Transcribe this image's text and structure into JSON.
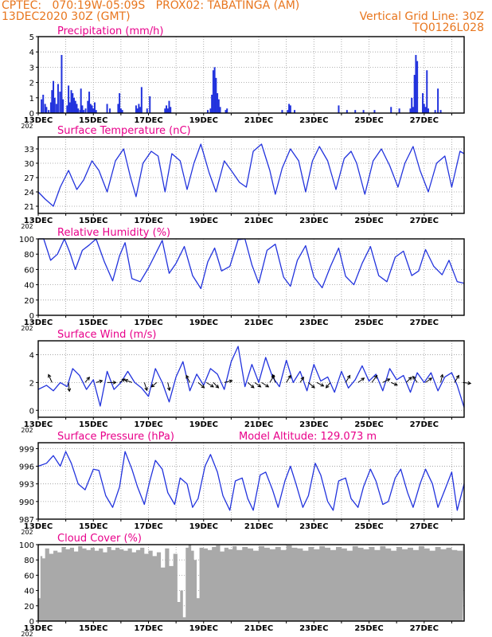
{
  "header": {
    "line1_left": "CPTEC:   070:19W-05:09S   PROX02: TABATINGA (AM)",
    "line2_left": "13DEC2020 30Z (GMT)",
    "line2_right": "Vertical Grid Line: 30Z",
    "line3_right": "TQ0126L028"
  },
  "colors": {
    "header_text": "#e8761e",
    "panel_title": "#e8008a",
    "line": "#2233dd",
    "cloud_fill": "#a9a9a9",
    "wind_arrow": "#000000"
  },
  "x_tick_labels": [
    "13DEC",
    "15DEC",
    "17DEC",
    "19DEC",
    "21DEC",
    "23DEC",
    "25DEC",
    "27DEC"
  ],
  "x_corner_label": "202",
  "chart_data": [
    {
      "id": "precip",
      "type": "bar",
      "title": "Precipitation (mm/h)",
      "yticks": [
        0,
        1,
        2,
        3,
        4,
        5
      ],
      "ylim": [
        0,
        5
      ],
      "grid": true,
      "x": [
        0.12,
        0.18,
        0.25,
        0.3,
        0.38,
        0.46,
        0.5,
        0.55,
        0.6,
        0.66,
        0.72,
        0.79,
        0.85,
        0.9,
        1.05,
        1.1,
        1.15,
        1.2,
        1.25,
        1.3,
        1.35,
        1.4,
        1.45,
        1.52,
        1.55,
        1.6,
        1.65,
        1.72,
        1.8,
        1.85,
        1.9,
        1.95,
        2.0,
        2.05,
        2.1,
        2.5,
        2.6,
        2.9,
        2.95,
        3.0,
        3.05,
        3.55,
        3.6,
        3.65,
        3.7,
        3.75,
        3.95,
        4.05,
        4.6,
        4.65,
        4.7,
        4.75,
        4.8,
        6.15,
        6.25,
        6.3,
        6.35,
        6.4,
        6.45,
        6.5,
        6.55,
        6.6,
        6.8,
        6.85,
        8.85,
        9.05,
        9.1,
        9.15,
        9.3,
        10.9,
        11.2,
        11.5,
        11.8,
        12.2,
        12.8,
        13.1,
        13.5,
        13.55,
        13.6,
        13.65,
        13.7,
        13.75,
        13.95,
        14.0,
        14.05,
        14.1,
        14.15,
        14.4,
        14.5,
        14.6
      ],
      "values": [
        0.9,
        1.2,
        0.6,
        0.4,
        0.2,
        0.7,
        1.5,
        2.1,
        1.0,
        0.6,
        1.9,
        1.4,
        3.8,
        0.9,
        0.5,
        1.8,
        0.7,
        1.5,
        1.3,
        1.0,
        0.8,
        0.6,
        0.3,
        0.2,
        1.6,
        0.5,
        0.2,
        0.3,
        0.8,
        1.4,
        0.6,
        0.5,
        0.3,
        0.7,
        0.2,
        0.6,
        0.3,
        0.6,
        1.3,
        0.3,
        0.2,
        0.5,
        0.3,
        0.6,
        0.4,
        1.7,
        0.3,
        1.1,
        0.3,
        0.5,
        0.3,
        0.8,
        0.4,
        0.2,
        0.3,
        1.2,
        2.8,
        3.0,
        2.3,
        1.3,
        0.9,
        0.4,
        0.2,
        0.3,
        0.2,
        0.2,
        0.6,
        0.5,
        0.2,
        0.5,
        0.2,
        0.2,
        0.2,
        0.2,
        0.4,
        0.3,
        0.3,
        1.0,
        0.4,
        2.5,
        3.8,
        3.4,
        1.3,
        0.6,
        0.4,
        2.8,
        0.3,
        0.2,
        1.6,
        0.2
      ]
    },
    {
      "id": "temp",
      "type": "line",
      "title": "Surface Temperature (nC)",
      "yticks": [
        21,
        24,
        27,
        30,
        33
      ],
      "ylim": [
        19.5,
        35.5
      ],
      "grid": true,
      "x": [
        0.0,
        0.25,
        0.55,
        0.8,
        1.1,
        1.4,
        1.65,
        1.95,
        2.2,
        2.5,
        2.8,
        3.1,
        3.35,
        3.55,
        3.8,
        4.1,
        4.35,
        4.6,
        4.85,
        5.15,
        5.4,
        5.65,
        5.9,
        6.2,
        6.45,
        6.75,
        7.0,
        7.3,
        7.55,
        7.8,
        8.1,
        8.4,
        8.6,
        8.85,
        9.15,
        9.45,
        9.7,
        9.95,
        10.2,
        10.5,
        10.8,
        11.1,
        11.35,
        11.55,
        11.85,
        12.15,
        12.45,
        12.75,
        13.05,
        13.3,
        13.6,
        13.85,
        14.15,
        14.45,
        14.75,
        15.0,
        15.3,
        15.45
      ],
      "values": [
        24.0,
        22.5,
        21.0,
        25.0,
        28.5,
        24.5,
        26.5,
        30.5,
        28.5,
        24.0,
        30.5,
        33.0,
        27.0,
        23.0,
        30.0,
        32.5,
        31.5,
        24.0,
        32.0,
        30.5,
        24.5,
        30.0,
        34.0,
        28.0,
        24.0,
        30.5,
        28.5,
        26.0,
        25.0,
        32.5,
        34.0,
        28.5,
        23.5,
        29.0,
        33.0,
        30.5,
        24.0,
        30.5,
        33.5,
        30.5,
        24.5,
        31.0,
        32.5,
        30.0,
        23.5,
        30.5,
        33.0,
        29.5,
        25.0,
        30.0,
        33.5,
        28.5,
        24.0,
        30.0,
        31.5,
        25.0,
        32.5,
        32.0
      ]
    },
    {
      "id": "rh",
      "type": "line",
      "title": "Relative Humidity (%)",
      "yticks": [
        0,
        20,
        40,
        60,
        80,
        100
      ],
      "ylim": [
        0,
        100
      ],
      "grid": true,
      "x": [
        0.0,
        0.2,
        0.45,
        0.7,
        0.95,
        1.15,
        1.35,
        1.6,
        1.85,
        2.1,
        2.4,
        2.7,
        2.95,
        3.15,
        3.4,
        3.7,
        4.0,
        4.25,
        4.5,
        4.75,
        5.0,
        5.3,
        5.6,
        5.9,
        6.15,
        6.4,
        6.65,
        6.95,
        7.25,
        7.5,
        7.75,
        8.0,
        8.3,
        8.6,
        8.9,
        9.15,
        9.4,
        9.7,
        10.0,
        10.3,
        10.6,
        10.9,
        11.15,
        11.45,
        11.75,
        12.05,
        12.35,
        12.65,
        12.95,
        13.25,
        13.55,
        13.8,
        14.05,
        14.35,
        14.65,
        14.9,
        15.2,
        15.45
      ],
      "values": [
        100,
        100,
        72,
        80,
        100,
        82,
        60,
        85,
        92,
        100,
        70,
        45,
        78,
        95,
        48,
        44,
        62,
        80,
        98,
        55,
        68,
        90,
        52,
        35,
        70,
        88,
        58,
        64,
        99,
        100,
        66,
        42,
        85,
        93,
        50,
        38,
        72,
        91,
        50,
        36,
        64,
        88,
        51,
        40,
        68,
        90,
        52,
        44,
        76,
        84,
        52,
        58,
        86,
        64,
        53,
        72,
        44,
        42
      ]
    },
    {
      "id": "wind",
      "type": "line",
      "title": "Surface Wind (m/s)",
      "yticks": [
        0,
        2,
        4
      ],
      "ylim": [
        -0.5,
        5.0
      ],
      "grid": true,
      "x": [
        0.0,
        0.3,
        0.55,
        0.8,
        1.05,
        1.25,
        1.5,
        1.75,
        2.0,
        2.25,
        2.5,
        2.75,
        3.0,
        3.25,
        3.5,
        3.75,
        4.0,
        4.25,
        4.5,
        4.75,
        5.0,
        5.25,
        5.5,
        5.75,
        6.0,
        6.25,
        6.5,
        6.75,
        7.0,
        7.25,
        7.5,
        7.75,
        8.0,
        8.25,
        8.5,
        8.75,
        9.0,
        9.25,
        9.5,
        9.75,
        10.0,
        10.25,
        10.5,
        10.75,
        11.0,
        11.25,
        11.5,
        11.75,
        12.0,
        12.25,
        12.5,
        12.75,
        13.0,
        13.25,
        13.5,
        13.75,
        14.0,
        14.25,
        14.5,
        14.75,
        15.0,
        15.2,
        15.45
      ],
      "values": [
        1.5,
        1.8,
        1.4,
        2.0,
        1.7,
        3.0,
        2.5,
        1.5,
        2.2,
        0.3,
        2.8,
        1.5,
        2.0,
        2.8,
        2.0,
        1.6,
        1.0,
        3.0,
        2.0,
        0.6,
        2.4,
        3.5,
        1.4,
        2.6,
        1.8,
        3.0,
        2.6,
        1.5,
        3.5,
        4.6,
        1.7,
        3.3,
        2.0,
        3.8,
        2.4,
        1.7,
        3.6,
        2.0,
        2.8,
        1.4,
        3.3,
        2.1,
        2.4,
        1.3,
        2.8,
        1.6,
        2.2,
        3.2,
        2.1,
        2.6,
        1.4,
        3.0,
        2.2,
        2.5,
        1.3,
        2.7,
        2.0,
        2.7,
        1.4,
        2.4,
        2.7,
        1.8,
        0.2
      ],
      "arrows": [
        {
          "t": 0.5,
          "dx": -0.4,
          "dy": 0.9
        },
        {
          "t": 1.1,
          "dx": 0.1,
          "dy": -1.0
        },
        {
          "t": 1.7,
          "dx": 0.5,
          "dy": 0.6
        },
        {
          "t": 2.1,
          "dx": 0.7,
          "dy": 0.2
        },
        {
          "t": 2.5,
          "dx": 1.0,
          "dy": 0.0
        },
        {
          "t": 2.95,
          "dx": 0.6,
          "dy": 0.4
        },
        {
          "t": 3.4,
          "dx": -0.8,
          "dy": 0.3
        },
        {
          "t": 3.85,
          "dx": 0.3,
          "dy": -0.9
        },
        {
          "t": 4.3,
          "dx": -0.6,
          "dy": -0.5
        },
        {
          "t": 4.7,
          "dx": 0.2,
          "dy": -0.9
        },
        {
          "t": 5.5,
          "dx": -0.4,
          "dy": 0.8
        },
        {
          "t": 5.8,
          "dx": 0.7,
          "dy": -0.6
        },
        {
          "t": 6.1,
          "dx": 0.8,
          "dy": -0.5
        },
        {
          "t": 6.35,
          "dx": 0.6,
          "dy": -0.6
        },
        {
          "t": 6.75,
          "dx": 0.9,
          "dy": 0.2
        },
        {
          "t": 7.6,
          "dx": 0.7,
          "dy": -0.6
        },
        {
          "t": 7.85,
          "dx": 0.7,
          "dy": -0.5
        },
        {
          "t": 8.1,
          "dx": 0.8,
          "dy": -0.5
        },
        {
          "t": 8.4,
          "dx": 0.5,
          "dy": 0.8
        },
        {
          "t": 8.6,
          "dx": -0.3,
          "dy": 0.9
        },
        {
          "t": 9.0,
          "dx": 0.5,
          "dy": 0.8
        },
        {
          "t": 9.5,
          "dx": 0.4,
          "dy": 0.6
        },
        {
          "t": 9.8,
          "dx": 0.7,
          "dy": -0.6
        },
        {
          "t": 10.1,
          "dx": 0.8,
          "dy": -0.4
        },
        {
          "t": 10.6,
          "dx": -0.5,
          "dy": -0.6
        },
        {
          "t": 11.15,
          "dx": 0.5,
          "dy": 0.8
        },
        {
          "t": 11.6,
          "dx": 0.7,
          "dy": 0.5
        },
        {
          "t": 12.1,
          "dx": 0.6,
          "dy": 0.8
        },
        {
          "t": 12.5,
          "dx": 0.8,
          "dy": 0.4
        },
        {
          "t": 12.8,
          "dx": 0.7,
          "dy": -0.3
        },
        {
          "t": 13.35,
          "dx": 0.6,
          "dy": 0.6
        },
        {
          "t": 13.75,
          "dx": -0.5,
          "dy": 0.7
        },
        {
          "t": 14.05,
          "dx": 0.7,
          "dy": 0.5
        },
        {
          "t": 14.6,
          "dx": 0.2,
          "dy": 0.9
        },
        {
          "t": 15.1,
          "dx": 0.5,
          "dy": 0.8
        },
        {
          "t": 15.4,
          "dx": 0.9,
          "dy": -0.1
        }
      ]
    },
    {
      "id": "press",
      "type": "line",
      "title": "Surface Pressure (hPa)",
      "annotation": "Model Altitude: 129.073 m",
      "yticks": [
        987,
        990,
        993,
        996,
        999
      ],
      "ylim": [
        987,
        1000
      ],
      "grid": true,
      "x": [
        0.0,
        0.3,
        0.55,
        0.8,
        1.0,
        1.2,
        1.45,
        1.7,
        2.0,
        2.2,
        2.45,
        2.7,
        2.95,
        3.15,
        3.4,
        3.6,
        3.85,
        4.05,
        4.25,
        4.5,
        4.7,
        4.95,
        5.15,
        5.4,
        5.6,
        5.8,
        6.05,
        6.25,
        6.5,
        6.7,
        6.95,
        7.15,
        7.4,
        7.6,
        7.8,
        8.05,
        8.25,
        8.5,
        8.7,
        8.95,
        9.15,
        9.35,
        9.6,
        9.8,
        10.05,
        10.25,
        10.5,
        10.7,
        10.9,
        11.15,
        11.35,
        11.6,
        11.8,
        12.05,
        12.25,
        12.5,
        12.7,
        12.95,
        13.15,
        13.4,
        13.6,
        13.85,
        14.05,
        14.3,
        14.5,
        14.75,
        15.0,
        15.2,
        15.45
      ],
      "values": [
        996.0,
        996.5,
        997.8,
        996.0,
        998.5,
        996.5,
        993.0,
        992.0,
        995.5,
        995.3,
        991.0,
        989.0,
        992.5,
        998.5,
        995.5,
        992.5,
        989.5,
        993.5,
        997.0,
        995.5,
        991.5,
        989.5,
        994.0,
        993.0,
        989.0,
        990.5,
        996.0,
        998.0,
        995.0,
        991.0,
        988.5,
        993.5,
        994.0,
        990.5,
        988.5,
        994.5,
        995.0,
        992.0,
        989.0,
        993.5,
        996.0,
        993.0,
        989.0,
        991.0,
        996.5,
        994.5,
        990.0,
        988.5,
        993.5,
        994.0,
        990.5,
        989.0,
        992.5,
        995.5,
        993.5,
        989.5,
        990.0,
        994.0,
        995.5,
        991.5,
        989.0,
        993.0,
        995.5,
        993.0,
        989.0,
        992.0,
        995.0,
        988.5,
        993.0
      ]
    },
    {
      "id": "cloud",
      "type": "area",
      "title": "Cloud Cover (%)",
      "yticks": [
        0,
        20,
        40,
        60,
        80,
        100
      ],
      "ylim": [
        0,
        100
      ],
      "grid": true,
      "x": [
        0.0,
        0.08,
        0.15,
        0.25,
        0.4,
        0.55,
        0.7,
        0.85,
        1.0,
        1.15,
        1.3,
        1.45,
        1.6,
        1.75,
        1.9,
        2.05,
        2.2,
        2.35,
        2.5,
        2.65,
        2.8,
        2.95,
        3.1,
        3.25,
        3.4,
        3.55,
        3.7,
        3.85,
        4.0,
        4.15,
        4.3,
        4.45,
        4.6,
        4.75,
        4.9,
        5.05,
        5.15,
        5.25,
        5.35,
        5.45,
        5.55,
        5.65,
        5.75,
        5.85,
        6.0,
        6.15,
        6.3,
        6.45,
        6.6,
        6.75,
        6.9,
        7.05,
        7.2,
        7.4,
        7.6,
        7.8,
        8.0,
        8.2,
        8.4,
        8.6,
        8.8,
        9.0,
        9.2,
        9.4,
        9.6,
        9.8,
        10.0,
        10.2,
        10.4,
        10.6,
        10.8,
        11.0,
        11.2,
        11.4,
        11.6,
        11.8,
        12.0,
        12.2,
        12.4,
        12.6,
        12.8,
        13.0,
        13.2,
        13.4,
        13.6,
        13.8,
        14.0,
        14.2,
        14.4,
        14.6,
        14.8,
        15.0,
        15.2,
        15.4
      ],
      "values": [
        30,
        85,
        82,
        95,
        88,
        92,
        90,
        97,
        94,
        96,
        91,
        98,
        95,
        93,
        96,
        92,
        95,
        90,
        97,
        93,
        96,
        94,
        92,
        95,
        90,
        93,
        96,
        88,
        92,
        85,
        90,
        70,
        95,
        72,
        88,
        25,
        40,
        5,
        96,
        100,
        92,
        80,
        30,
        96,
        95,
        93,
        97,
        99,
        91,
        96,
        94,
        98,
        93,
        97,
        95,
        92,
        98,
        96,
        94,
        97,
        93,
        99,
        96,
        95,
        92,
        97,
        94,
        98,
        96,
        93,
        97,
        95,
        92,
        98,
        96,
        94,
        97,
        93,
        98,
        95,
        92,
        97,
        94,
        96,
        93,
        98,
        95,
        92,
        97,
        94,
        96,
        93,
        92,
        98
      ]
    }
  ]
}
